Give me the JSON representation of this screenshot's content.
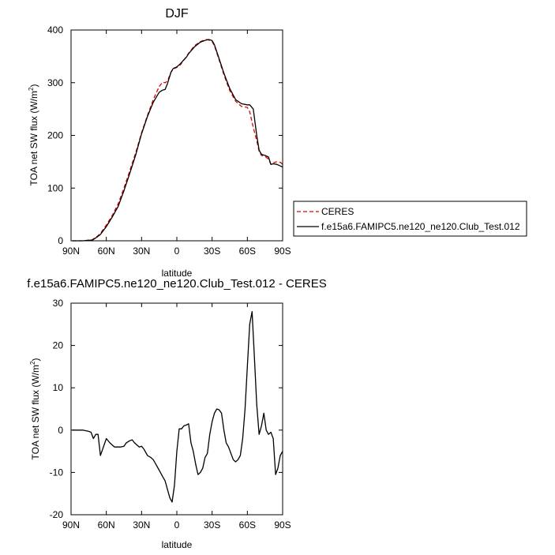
{
  "chart_data": [
    {
      "type": "line",
      "title": "DJF",
      "xlabel": "latitude",
      "ylabel": "TOA net SW flux (W/m",
      "ylabel_sup": "2",
      "ylabel_end": ")",
      "xlim": [
        90,
        -90
      ],
      "ylim": [
        0,
        400
      ],
      "xticks": [
        90,
        60,
        30,
        0,
        -30,
        -60,
        -90
      ],
      "xtick_labels": [
        "90N",
        "60N",
        "30N",
        "0",
        "30S",
        "60S",
        "90S"
      ],
      "yticks": [
        0,
        100,
        200,
        300,
        400
      ],
      "ytick_labels": [
        "0",
        "100",
        "200",
        "300",
        "400"
      ],
      "legend_position": "right",
      "series": [
        {
          "name": "CERES",
          "color": "#e00000",
          "dash": "dashed",
          "x": [
            89,
            85,
            80,
            75,
            72,
            70,
            68,
            65,
            60,
            55,
            50,
            45,
            40,
            35,
            30,
            25,
            20,
            15,
            12,
            10,
            8,
            5,
            3,
            0,
            -3,
            -5,
            -8,
            -10,
            -15,
            -20,
            -25,
            -27,
            -30,
            -32,
            -35,
            -40,
            -45,
            -50,
            -55,
            -60,
            -62,
            -65,
            -68,
            -70,
            -72,
            -75,
            -78,
            -80,
            -82,
            -85,
            -88,
            -90
          ],
          "y": [
            0,
            0,
            0,
            1,
            2,
            5,
            8,
            14,
            30,
            48,
            70,
            100,
            133,
            167,
            205,
            238,
            268,
            293,
            301,
            300,
            303,
            320,
            326,
            329,
            334,
            340,
            349,
            356,
            370,
            378,
            382,
            381,
            378,
            370,
            350,
            315,
            285,
            265,
            255,
            253,
            245,
            215,
            190,
            170,
            162,
            160,
            155,
            145,
            148,
            150,
            149,
            145
          ]
        },
        {
          "name": "f.e15a6.FAMIPC5.ne120_ne120.Club_Test.012",
          "color": "#000000",
          "dash": "solid",
          "x": [
            89,
            85,
            80,
            75,
            72,
            70,
            68,
            65,
            60,
            55,
            50,
            45,
            40,
            35,
            30,
            25,
            20,
            15,
            12,
            10,
            8,
            5,
            3,
            0,
            -3,
            -5,
            -8,
            -10,
            -15,
            -20,
            -25,
            -27,
            -30,
            -32,
            -35,
            -40,
            -45,
            -50,
            -55,
            -60,
            -62,
            -65,
            -68,
            -70,
            -72,
            -75,
            -78,
            -80,
            -82,
            -85,
            -88,
            -90
          ],
          "y": [
            0,
            0,
            0,
            1,
            1,
            4,
            7,
            12,
            27,
            45,
            65,
            95,
            128,
            163,
            203,
            236,
            263,
            282,
            286,
            287,
            298,
            320,
            327,
            330,
            336,
            341,
            348,
            355,
            368,
            377,
            381,
            382,
            380,
            372,
            352,
            318,
            289,
            268,
            260,
            258,
            258,
            250,
            200,
            172,
            164,
            162,
            159,
            145,
            146,
            145,
            142,
            140
          ]
        }
      ]
    },
    {
      "type": "line",
      "title": "f.e15a6.FAMIPC5.ne120_ne120.Club_Test.012 - CERES",
      "xlabel": "latitude",
      "ylabel": "TOA net SW flux (W/m",
      "ylabel_sup": "2",
      "ylabel_end": ")",
      "xlim": [
        90,
        -90
      ],
      "ylim": [
        -20,
        30
      ],
      "xticks": [
        90,
        60,
        30,
        0,
        -30,
        -60,
        -90
      ],
      "xtick_labels": [
        "90N",
        "60N",
        "30N",
        "0",
        "30S",
        "60S",
        "90S"
      ],
      "yticks": [
        -20,
        -10,
        0,
        10,
        20,
        30
      ],
      "ytick_labels": [
        "-20",
        "-10",
        "0",
        "10",
        "20",
        "30"
      ],
      "series": [
        {
          "color": "#000000",
          "dash": "solid",
          "x": [
            89,
            80,
            75,
            73,
            71,
            69,
            67,
            65,
            60,
            57,
            55,
            53,
            51,
            48,
            45,
            43,
            40,
            38,
            36,
            34,
            32,
            30,
            28,
            25,
            22,
            20,
            18,
            16,
            14,
            12,
            10,
            8,
            6,
            4,
            2,
            0,
            -2,
            -4,
            -6,
            -8,
            -10,
            -12,
            -14,
            -16,
            -18,
            -20,
            -22,
            -24,
            -26,
            -28,
            -30,
            -32,
            -34,
            -36,
            -38,
            -40,
            -42,
            -44,
            -46,
            -48,
            -50,
            -52,
            -54,
            -56,
            -58,
            -60,
            -62,
            -64,
            -66,
            -68,
            -70,
            -72,
            -74,
            -76,
            -78,
            -80,
            -82,
            -84,
            -86,
            -88,
            -90
          ],
          "y": [
            0,
            0,
            -0.3,
            -0.5,
            -2,
            -1,
            -1,
            -6,
            -2,
            -3,
            -3.5,
            -4,
            -4,
            -4,
            -3.8,
            -3,
            -2.5,
            -2.3,
            -3,
            -3.5,
            -4,
            -3.8,
            -4.5,
            -6,
            -6.5,
            -7,
            -8,
            -9,
            -10,
            -11,
            -12,
            -14,
            -16,
            -17,
            -13,
            -5,
            0.3,
            0.3,
            1,
            1.2,
            1.5,
            -3,
            -5,
            -8,
            -10.5,
            -10,
            -9,
            -6.5,
            -5.5,
            -1,
            2,
            4,
            5,
            4.8,
            4,
            0,
            -3,
            -4,
            -5.5,
            -7,
            -7.5,
            -7,
            -6,
            -2,
            5,
            15,
            25,
            28,
            17,
            6,
            -1,
            1,
            4,
            0,
            -1,
            -0.5,
            -2,
            -10.5,
            -9,
            -6,
            -5
          ]
        }
      ]
    }
  ]
}
